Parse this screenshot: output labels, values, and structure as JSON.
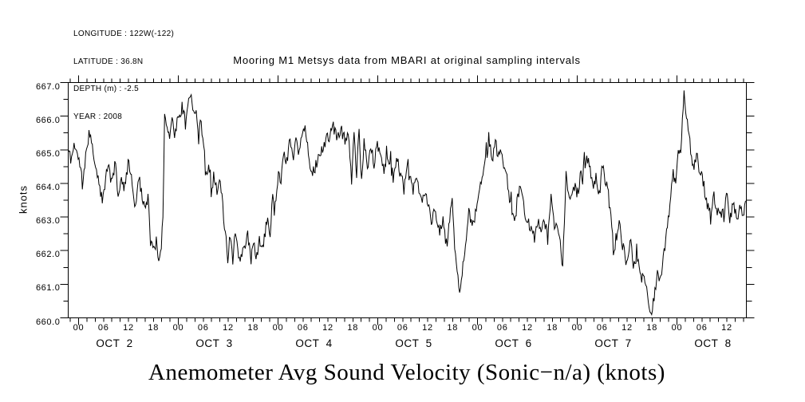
{
  "meta_block": {
    "lines": [
      "LONGITUDE : 122W(-122)",
      "LATITUDE : 36.8N",
      "DEPTH (m) : -2.5",
      "YEAR : 2008"
    ]
  },
  "chart_data": {
    "type": "line",
    "title": "Mooring M1 Metsys data from MBARI at original sampling intervals",
    "caption": "Anemometer Avg Sound Velocity (Sonic−n/a) (knots)",
    "ylabel": "knots",
    "ylim": [
      660.0,
      667.0
    ],
    "y_tick_step": 0.5,
    "y_major_step": 1.0,
    "y_major_labels": [
      "660.0",
      "661.0",
      "662.0",
      "663.0",
      "664.0",
      "665.0",
      "666.0",
      "667.0"
    ],
    "x_range_hours": [
      -2.5,
      160.7
    ],
    "x_tick_step_hours": 2,
    "x_label_step_hours": 6,
    "hour_labels": [
      "00",
      "06",
      "12",
      "18"
    ],
    "day_labels": [
      "OCT  2",
      "OCT  3",
      "OCT  4",
      "OCT  5",
      "OCT  6",
      "OCT  7",
      "OCT  8"
    ],
    "grid": false,
    "legend": null,
    "line_color": "#000000",
    "series": [
      {
        "name": "anemometer-avg-sound-velocity",
        "units": "knots",
        "points": [
          [
            -2.5,
            665.0
          ],
          [
            -1.8,
            664.7
          ],
          [
            -1.0,
            665.2
          ],
          [
            -0.3,
            664.85
          ],
          [
            0.4,
            664.5
          ],
          [
            0.9,
            663.95
          ],
          [
            1.7,
            664.8
          ],
          [
            2.7,
            665.55
          ],
          [
            3.5,
            664.9
          ],
          [
            4.4,
            664.3
          ],
          [
            5.6,
            663.4
          ],
          [
            6.6,
            664.2
          ],
          [
            7.3,
            664.5
          ],
          [
            8.0,
            663.9
          ],
          [
            8.8,
            664.7
          ],
          [
            9.6,
            663.5
          ],
          [
            10.4,
            664.2
          ],
          [
            11.2,
            663.8
          ],
          [
            12.0,
            664.8
          ],
          [
            12.8,
            664.1
          ],
          [
            13.6,
            663.3
          ],
          [
            14.4,
            664.3
          ],
          [
            15.2,
            663.7
          ],
          [
            16.1,
            663.2
          ],
          [
            16.7,
            663.6
          ],
          [
            17.3,
            662.3
          ],
          [
            18.0,
            661.9
          ],
          [
            18.6,
            662.35
          ],
          [
            19.2,
            661.8
          ],
          [
            19.9,
            662.1
          ],
          [
            20.3,
            663.0
          ],
          [
            20.7,
            666.05
          ],
          [
            21.3,
            665.7
          ],
          [
            21.9,
            665.45
          ],
          [
            22.5,
            665.9
          ],
          [
            23.1,
            665.5
          ],
          [
            23.7,
            665.8
          ],
          [
            24.4,
            665.95
          ],
          [
            25.0,
            666.25
          ],
          [
            25.6,
            665.9
          ],
          [
            26.3,
            666.4
          ],
          [
            27.1,
            666.62
          ],
          [
            27.8,
            666.1
          ],
          [
            28.4,
            665.95
          ],
          [
            28.9,
            665.4
          ],
          [
            29.5,
            665.9
          ],
          [
            30.2,
            664.9
          ],
          [
            30.8,
            664.35
          ],
          [
            31.4,
            664.6
          ],
          [
            32.1,
            663.9
          ],
          [
            32.7,
            664.35
          ],
          [
            33.3,
            663.7
          ],
          [
            34.0,
            664.1
          ],
          [
            34.7,
            663.3
          ],
          [
            35.2,
            662.6
          ],
          [
            35.9,
            661.8
          ],
          [
            36.5,
            662.5
          ],
          [
            37.1,
            661.9
          ],
          [
            37.7,
            662.6
          ],
          [
            38.2,
            662.0
          ],
          [
            38.8,
            661.7
          ],
          [
            39.4,
            662.3
          ],
          [
            40.0,
            661.9
          ],
          [
            40.7,
            662.5
          ],
          [
            41.4,
            661.7
          ],
          [
            42.1,
            662.2
          ],
          [
            42.8,
            661.75
          ],
          [
            43.5,
            662.4
          ],
          [
            44.2,
            661.9
          ],
          [
            44.9,
            662.6
          ],
          [
            45.5,
            663.0
          ],
          [
            46.1,
            662.5
          ],
          [
            46.8,
            663.8
          ],
          [
            47.4,
            663.2
          ],
          [
            48.1,
            664.5
          ],
          [
            48.7,
            664.0
          ],
          [
            49.3,
            665.0
          ],
          [
            49.9,
            664.6
          ],
          [
            50.9,
            665.35
          ],
          [
            51.7,
            664.8
          ],
          [
            52.4,
            665.5
          ],
          [
            53.0,
            664.9
          ],
          [
            53.7,
            665.3
          ],
          [
            54.5,
            665.75
          ],
          [
            55.2,
            664.8
          ],
          [
            56.2,
            664.35
          ],
          [
            57.0,
            664.5
          ],
          [
            58.0,
            664.8
          ],
          [
            59.0,
            665.1
          ],
          [
            60.0,
            665.4
          ],
          [
            61.2,
            665.7
          ],
          [
            62.2,
            665.3
          ],
          [
            63.2,
            665.6
          ],
          [
            64.2,
            665.25
          ],
          [
            65.0,
            665.55
          ],
          [
            65.7,
            664.0
          ],
          [
            66.3,
            665.6
          ],
          [
            66.9,
            664.3
          ],
          [
            67.5,
            665.5
          ],
          [
            68.1,
            664.1
          ],
          [
            68.7,
            665.3
          ],
          [
            69.5,
            664.4
          ],
          [
            70.3,
            665.2
          ],
          [
            71.1,
            664.6
          ],
          [
            72.0,
            665.1
          ],
          [
            73.4,
            664.4
          ],
          [
            74.3,
            664.9
          ],
          [
            75.7,
            664.2
          ],
          [
            76.6,
            664.7
          ],
          [
            78.1,
            664.0
          ],
          [
            79.1,
            664.4
          ],
          [
            80.4,
            663.8
          ],
          [
            81.4,
            664.1
          ],
          [
            82.6,
            663.4
          ],
          [
            83.5,
            663.7
          ],
          [
            84.9,
            662.9
          ],
          [
            85.8,
            663.2
          ],
          [
            86.8,
            662.5
          ],
          [
            87.7,
            662.9
          ],
          [
            88.7,
            662.2
          ],
          [
            89.9,
            663.55
          ],
          [
            90.6,
            662.0
          ],
          [
            91.6,
            660.8
          ],
          [
            92.6,
            661.7
          ],
          [
            93.4,
            662.4
          ],
          [
            94.1,
            663.1
          ],
          [
            94.7,
            662.6
          ],
          [
            95.4,
            663.0
          ],
          [
            96.2,
            663.5
          ],
          [
            97.1,
            664.2
          ],
          [
            98.0,
            664.8
          ],
          [
            98.8,
            665.35
          ],
          [
            99.5,
            664.6
          ],
          [
            100.2,
            665.3
          ],
          [
            100.9,
            664.8
          ],
          [
            101.6,
            665.1
          ],
          [
            102.3,
            664.6
          ],
          [
            103.1,
            664.1
          ],
          [
            103.9,
            663.5
          ],
          [
            104.7,
            662.95
          ],
          [
            105.5,
            663.4
          ],
          [
            106.3,
            663.9
          ],
          [
            107.1,
            663.3
          ],
          [
            107.9,
            662.9
          ],
          [
            108.8,
            662.65
          ],
          [
            109.7,
            662.4
          ],
          [
            110.5,
            662.9
          ],
          [
            111.3,
            662.4
          ],
          [
            112.1,
            663.0
          ],
          [
            112.9,
            662.3
          ],
          [
            113.7,
            663.55
          ],
          [
            114.5,
            662.8
          ],
          [
            115.2,
            662.9
          ],
          [
            115.9,
            662.3
          ],
          [
            116.5,
            661.45
          ],
          [
            117.3,
            664.3
          ],
          [
            118.1,
            663.5
          ],
          [
            119.0,
            663.9
          ],
          [
            119.9,
            663.6
          ],
          [
            120.8,
            664.2
          ],
          [
            121.8,
            664.5
          ],
          [
            122.7,
            664.78
          ],
          [
            123.6,
            663.9
          ],
          [
            124.5,
            664.2
          ],
          [
            125.3,
            663.7
          ],
          [
            126.2,
            664.45
          ],
          [
            127.1,
            663.9
          ],
          [
            128.0,
            663.4
          ],
          [
            128.7,
            661.95
          ],
          [
            129.5,
            662.4
          ],
          [
            130.1,
            662.75
          ],
          [
            131.0,
            662.1
          ],
          [
            132.0,
            661.6
          ],
          [
            132.8,
            662.25
          ],
          [
            133.6,
            661.5
          ],
          [
            134.4,
            661.9
          ],
          [
            135.2,
            661.1
          ],
          [
            136.0,
            661.4
          ],
          [
            136.9,
            660.7
          ],
          [
            137.7,
            660.15
          ],
          [
            138.5,
            660.6
          ],
          [
            139.3,
            661.4
          ],
          [
            140.0,
            661.0
          ],
          [
            140.8,
            661.9
          ],
          [
            141.6,
            662.6
          ],
          [
            142.4,
            663.4
          ],
          [
            143.0,
            664.4
          ],
          [
            143.7,
            664.0
          ],
          [
            144.3,
            664.9
          ],
          [
            145.0,
            665.3
          ],
          [
            145.7,
            666.62
          ],
          [
            146.4,
            666.0
          ],
          [
            147.2,
            665.1
          ],
          [
            148.0,
            664.4
          ],
          [
            148.8,
            664.8
          ],
          [
            149.6,
            664.3
          ],
          [
            150.4,
            664.0
          ],
          [
            151.2,
            663.4
          ],
          [
            152.0,
            663.0
          ],
          [
            152.8,
            663.7
          ],
          [
            153.6,
            663.0
          ],
          [
            154.4,
            663.3
          ],
          [
            155.2,
            662.9
          ],
          [
            156.0,
            663.75
          ],
          [
            156.8,
            663.0
          ],
          [
            157.6,
            663.4
          ],
          [
            158.4,
            662.9
          ],
          [
            159.2,
            663.3
          ],
          [
            160.0,
            663.0
          ],
          [
            160.5,
            663.35
          ]
        ]
      }
    ],
    "noise": {
      "seed": 11,
      "step_hours": 0.2,
      "base_amp": 0.18,
      "spike_prob": 0.12,
      "spike_amp": 0.35
    }
  }
}
